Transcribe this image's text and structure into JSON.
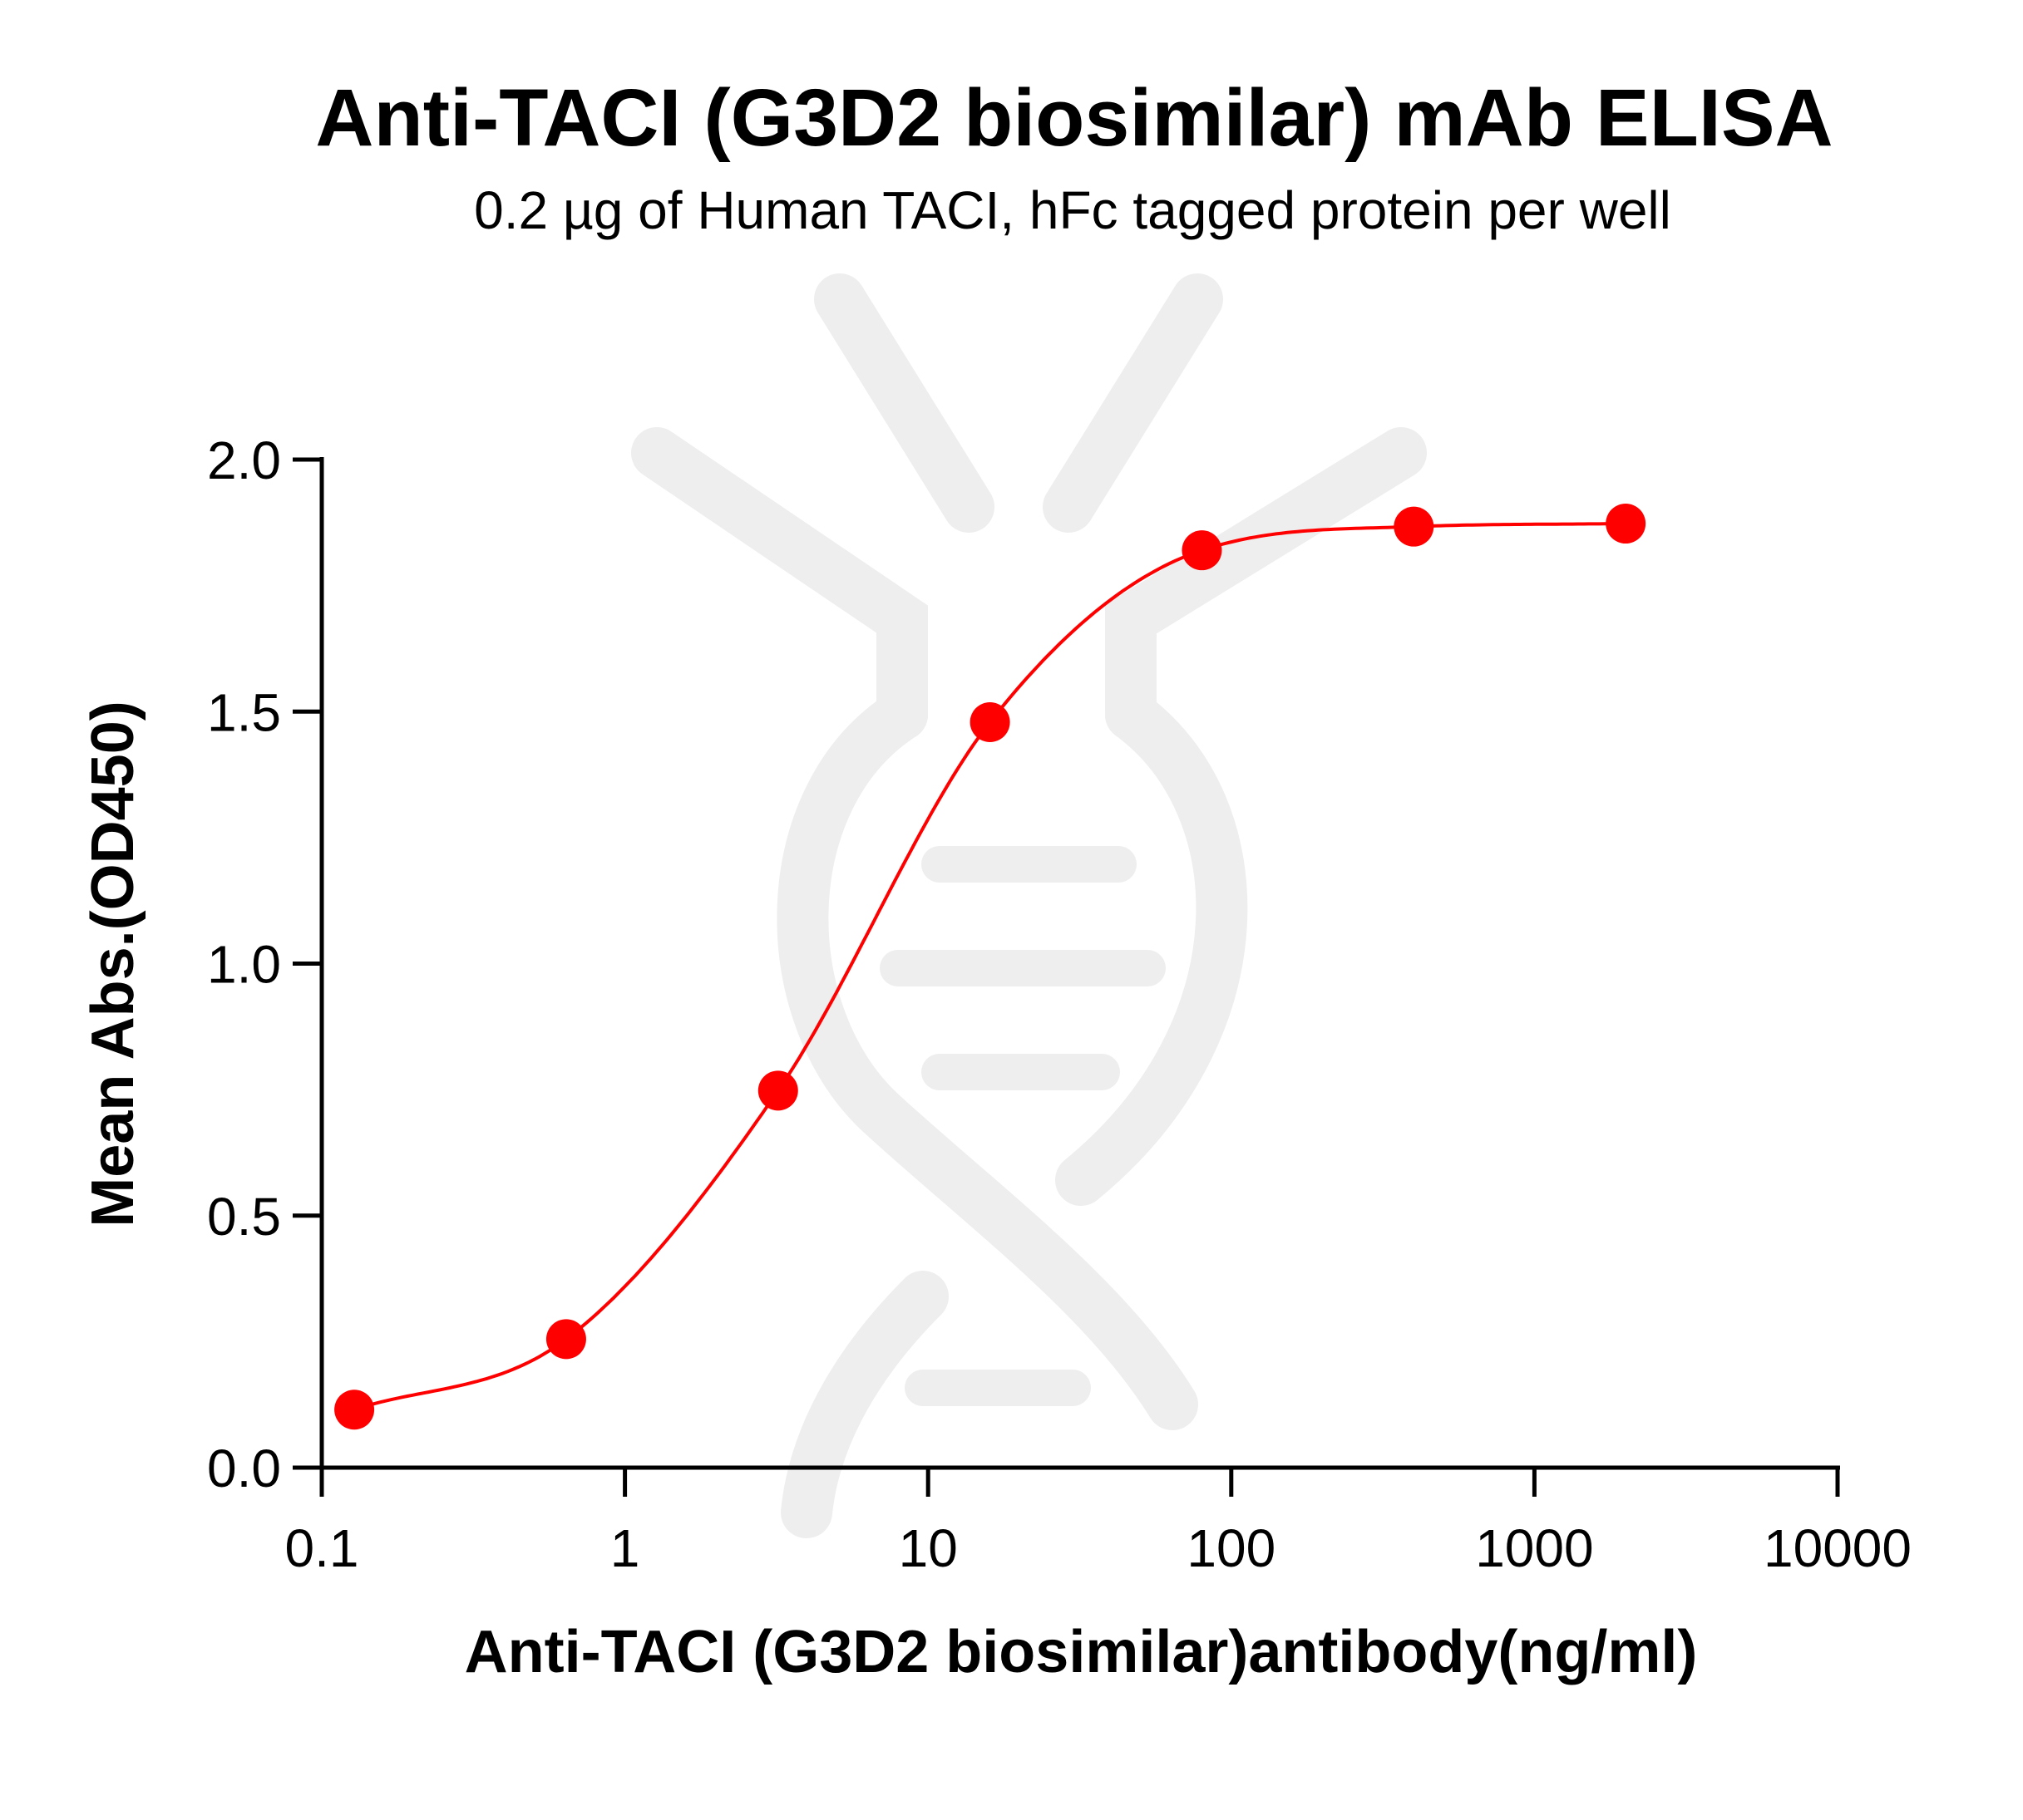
{
  "chart_data": {
    "type": "scatter",
    "title": "Anti-TACI (G3D2 biosimilar) mAb ELISA",
    "subtitle": "0.2 µg of Human TACI, hFc tagged protein per well",
    "xlabel": "Anti-TACI (G3D2 biosimilar)antibody(ng/ml)",
    "ylabel": "Mean Abs.(OD450)",
    "xscale": "log",
    "xlim": [
      0.1,
      10000
    ],
    "ylim": [
      0.0,
      2.0
    ],
    "xticks": [
      0.1,
      1,
      10,
      100,
      1000,
      10000
    ],
    "xtick_labels": [
      "0.1",
      "1",
      "10",
      "100",
      "1000",
      "10000"
    ],
    "yticks": [
      0.0,
      0.5,
      1.0,
      1.5,
      2.0
    ],
    "ytick_labels": [
      "0.0",
      "0.5",
      "1.0",
      "1.5",
      "2.0"
    ],
    "grid": false,
    "color": "#ff0000",
    "series": [
      {
        "x": [
          0.128,
          0.64,
          3.2,
          16,
          80,
          400,
          2000
        ],
        "y": [
          0.115,
          0.255,
          0.748,
          1.479,
          1.82,
          1.867,
          1.873
        ],
        "fit": "4PL sigmoid curve"
      }
    ]
  }
}
